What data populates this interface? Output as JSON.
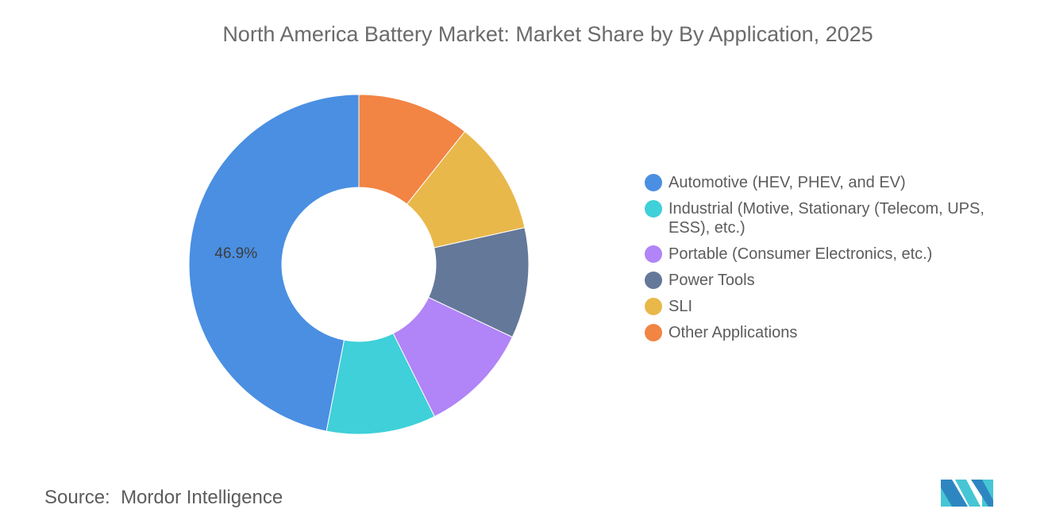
{
  "title": "North America Battery Market: Market Share by By Application, 2025",
  "source_label": "Source:",
  "source_value": "Mordor Intelligence",
  "chart_data": {
    "type": "pie",
    "variant": "donut",
    "title": "North America Battery Market: Market Share by By Application, 2025",
    "legend_position": "right",
    "categories": [
      "Automotive (HEV, PHEV, and EV)",
      "Industrial (Motive, Stationary (Telecom, UPS, ESS), etc.)",
      "Portable (Consumer Electronics, etc.)",
      "Power Tools",
      "SLI",
      "Other Applications"
    ],
    "values": [
      46.9,
      10.4,
      10.6,
      10.5,
      10.8,
      10.7
    ],
    "colors": [
      "#4a8fe2",
      "#3fd0d9",
      "#b184f7",
      "#647899",
      "#e9b84b",
      "#f28444"
    ],
    "data_labels": [
      "46.9%",
      "",
      "",
      "",
      "",
      ""
    ]
  }
}
